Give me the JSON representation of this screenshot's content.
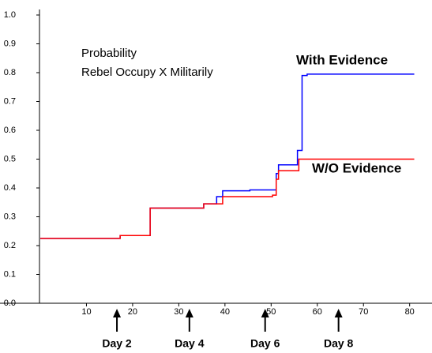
{
  "chart_data": {
    "type": "step",
    "annotations": [
      "Probability",
      "Rebel Occupy X Militarily"
    ],
    "series": [
      {
        "name": "With Evidence",
        "color": "#0000ff",
        "x": [
          0,
          17.3,
          23.8,
          35.4,
          38.2,
          39.5,
          45.4,
          51.1,
          51.6,
          55.7,
          56.7,
          57.8,
          81
        ],
        "values": [
          0.225,
          0.235,
          0.33,
          0.345,
          0.37,
          0.39,
          0.393,
          0.45,
          0.48,
          0.53,
          0.79,
          0.795,
          0.795
        ]
      },
      {
        "name": "W/O Evidence",
        "color": "#ff0000",
        "x": [
          0,
          17.3,
          23.8,
          35.4,
          39.5,
          50.3,
          51.1,
          51.6,
          56,
          81
        ],
        "values": [
          0.225,
          0.235,
          0.33,
          0.345,
          0.37,
          0.375,
          0.43,
          0.46,
          0.5,
          0.5
        ]
      }
    ],
    "day_markers": [
      {
        "label": "Day 2",
        "x": 16.6
      },
      {
        "label": "Day 4",
        "x": 32.3
      },
      {
        "label": "Day 6",
        "x": 48.7
      },
      {
        "label": "Day 8",
        "x": 64.6
      }
    ],
    "xlim": [
      0,
      84.5
    ],
    "xticks": [
      10,
      20,
      30,
      40,
      50,
      60,
      70,
      80
    ],
    "ylim": [
      0,
      1
    ],
    "yticks": [
      {
        "value": 0,
        "label": "0.0"
      },
      0.1,
      0.2,
      0.3,
      0.4,
      0.5,
      0.6,
      0.7,
      0.8,
      0.9,
      {
        "value": 1,
        "label": "1.0"
      }
    ]
  }
}
